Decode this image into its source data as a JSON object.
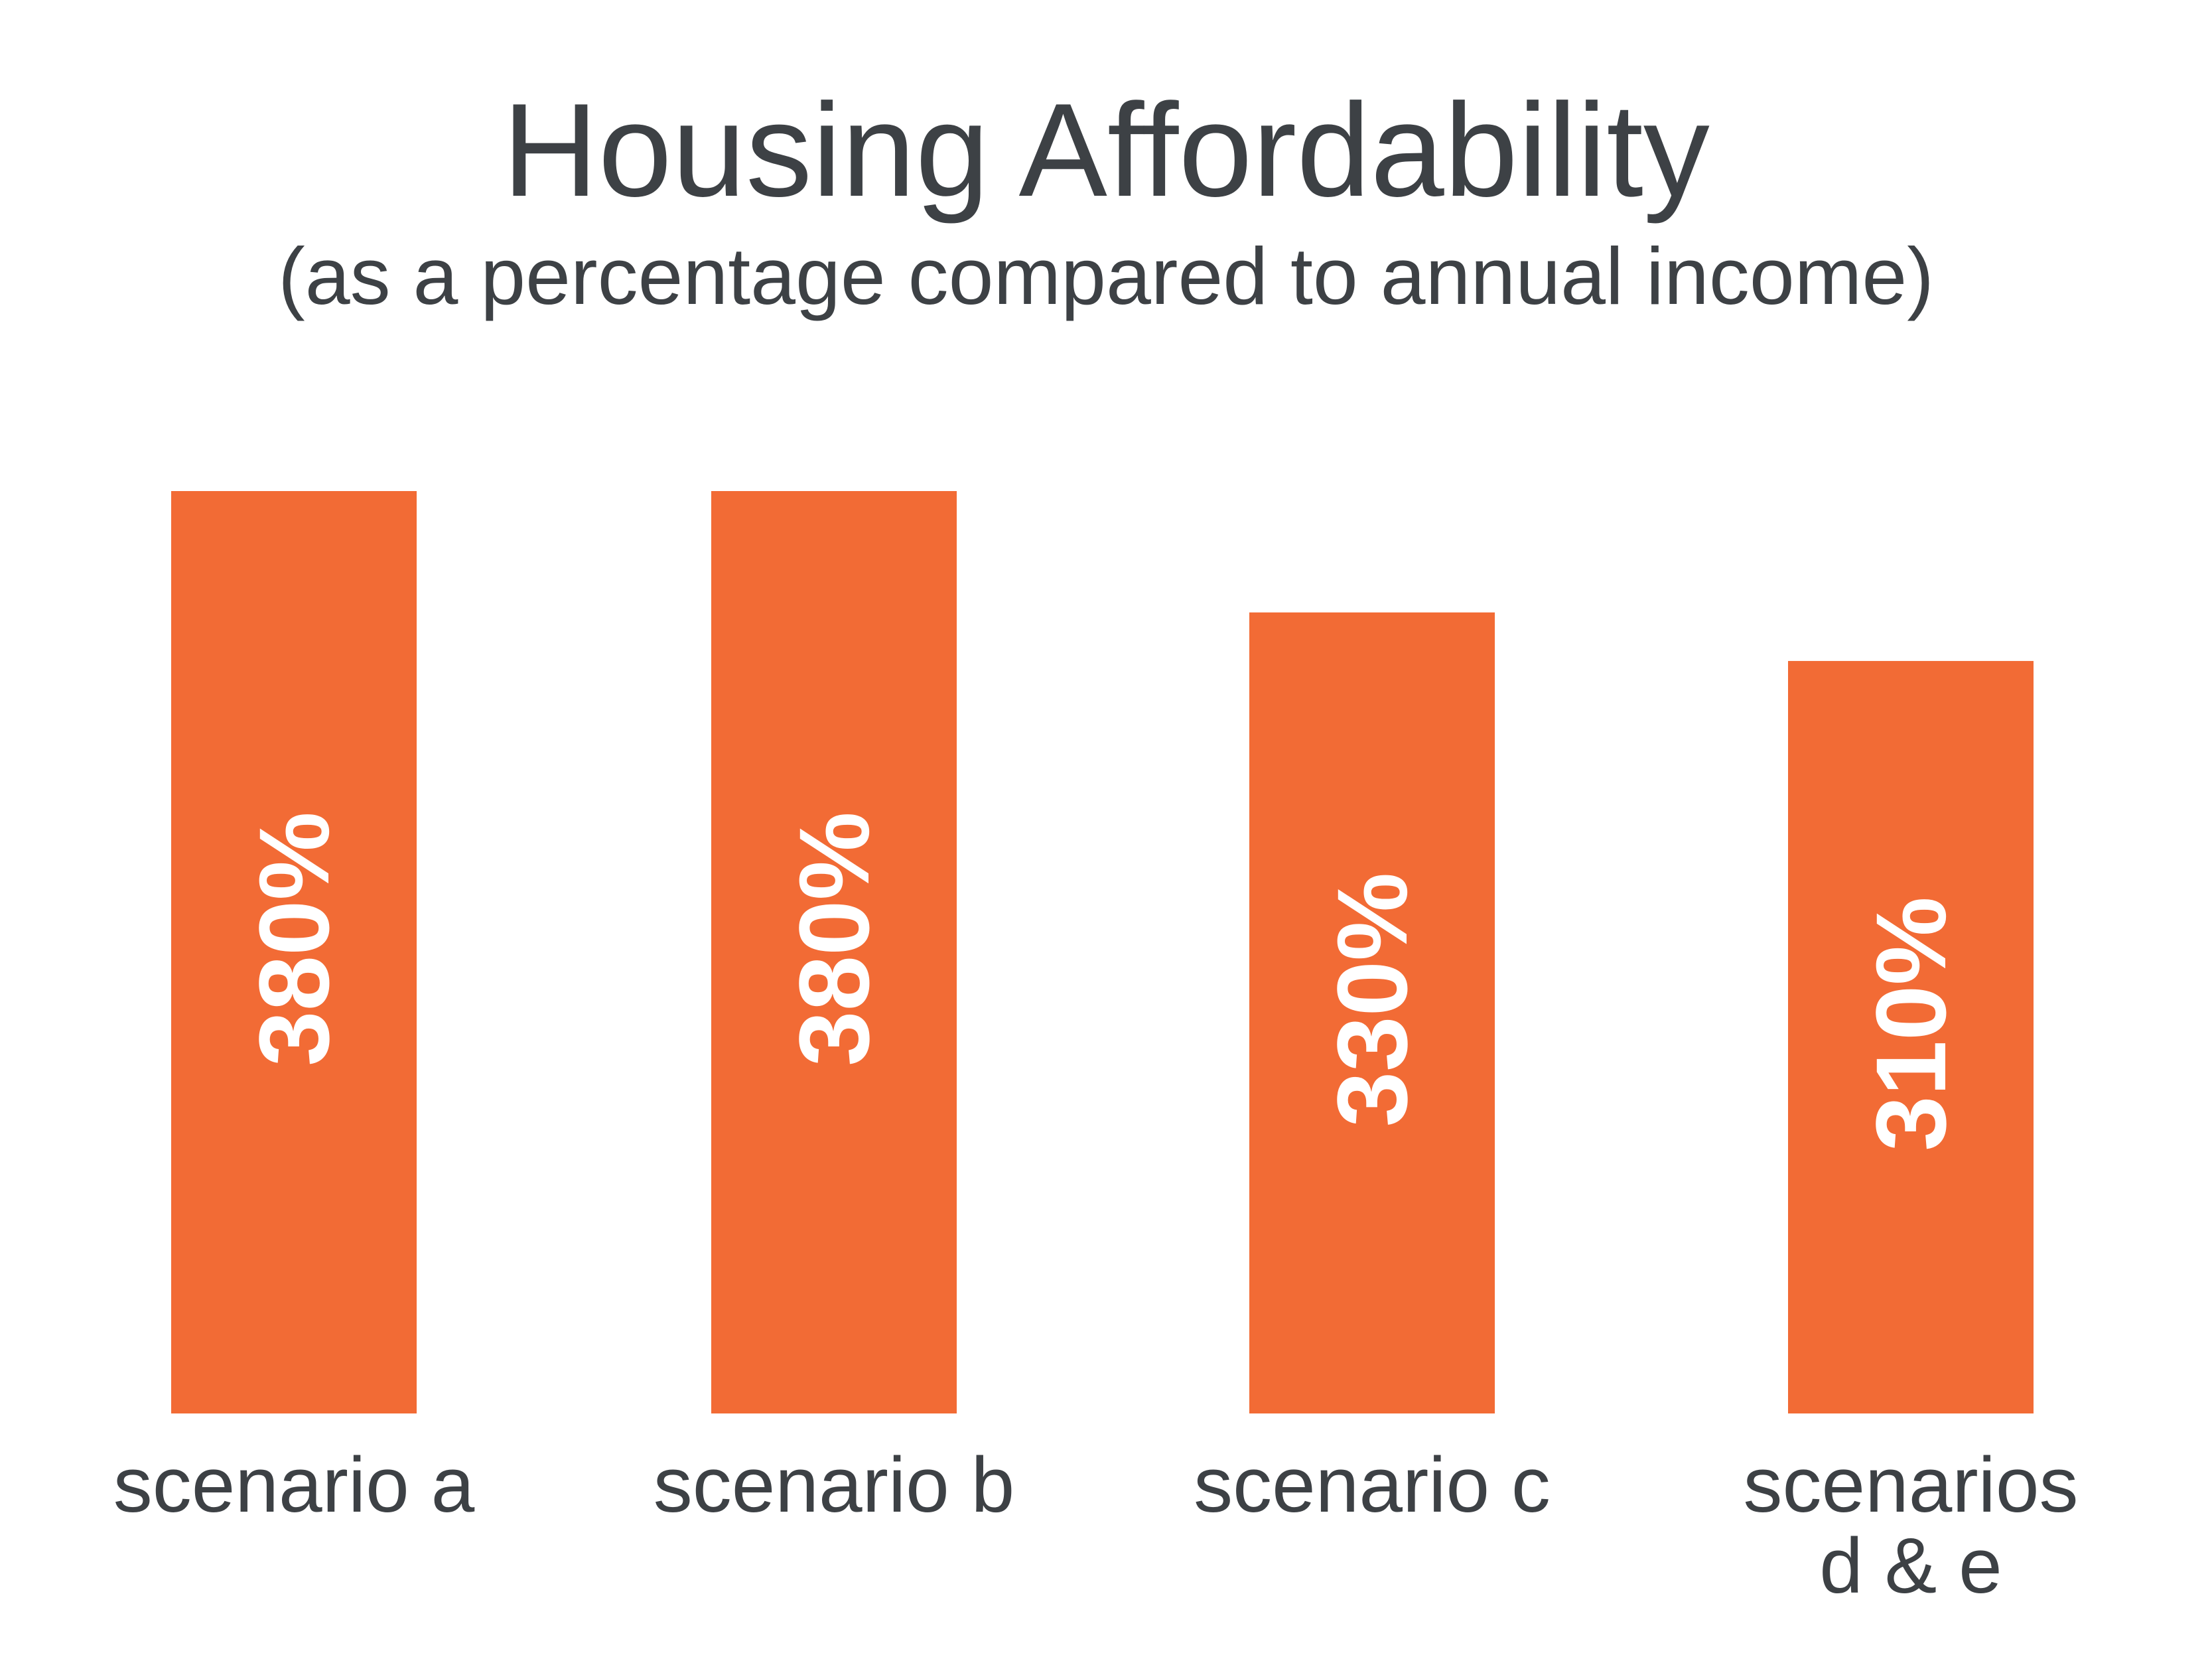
{
  "chart_data": {
    "type": "bar",
    "title": "Housing Affordability",
    "subtitle": "(as a percentage compared to annual income)",
    "categories": [
      [
        "scenario a"
      ],
      [
        "scenario b"
      ],
      [
        "scenario c"
      ],
      [
        "scenarios",
        "d & e"
      ]
    ],
    "values": [
      380,
      380,
      330,
      310
    ],
    "data_labels": [
      "380%",
      "380%",
      "330%",
      "310%"
    ],
    "ylim": [
      0,
      380
    ],
    "grid": false,
    "legend": "none",
    "bar_color": "#f26b35",
    "text_color": "#3d4145",
    "label_color": "#ffffff"
  }
}
